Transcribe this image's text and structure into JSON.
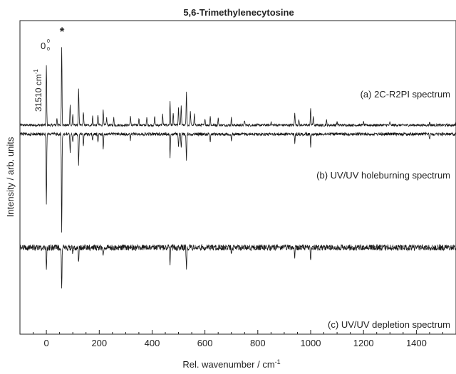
{
  "chart_data": {
    "type": "line",
    "title": "5,6-Trimethylenecytosine",
    "xlabel": "Rel. wavenumber / cm",
    "xlabel_sup": "-1",
    "ylabel": "Intensity / arb. units",
    "xlim": [
      -100,
      1550
    ],
    "x_ticks": [
      0,
      200,
      400,
      600,
      800,
      1000,
      1200,
      1400
    ],
    "x_tick_labels": [
      "0",
      "200",
      "400",
      "600",
      "800",
      "1000",
      "1200",
      "1400"
    ],
    "annotations": {
      "origin_value": "31510 cm",
      "origin_value_sup": "-1",
      "origin_label": "0",
      "origin_sup": "0",
      "origin_sub": "0",
      "star": "*"
    },
    "series": [
      {
        "name": "(a) 2C-R2PI spectrum",
        "baseline": 0.0,
        "direction": "up",
        "noise": 0.02,
        "peaks": [
          [
            0,
            1.0
          ],
          [
            40,
            0.12
          ],
          [
            58,
            1.3
          ],
          [
            90,
            0.35
          ],
          [
            100,
            0.18
          ],
          [
            122,
            0.62
          ],
          [
            140,
            0.22
          ],
          [
            175,
            0.15
          ],
          [
            195,
            0.18
          ],
          [
            215,
            0.28
          ],
          [
            228,
            0.12
          ],
          [
            255,
            0.12
          ],
          [
            318,
            0.15
          ],
          [
            350,
            0.12
          ],
          [
            380,
            0.12
          ],
          [
            410,
            0.15
          ],
          [
            440,
            0.18
          ],
          [
            468,
            0.4
          ],
          [
            480,
            0.2
          ],
          [
            500,
            0.28
          ],
          [
            510,
            0.32
          ],
          [
            530,
            0.55
          ],
          [
            545,
            0.22
          ],
          [
            560,
            0.18
          ],
          [
            600,
            0.12
          ],
          [
            620,
            0.15
          ],
          [
            650,
            0.12
          ],
          [
            700,
            0.12
          ],
          [
            750,
            0.08
          ],
          [
            850,
            0.06
          ],
          [
            940,
            0.22
          ],
          [
            955,
            0.1
          ],
          [
            1000,
            0.28
          ],
          [
            1010,
            0.15
          ],
          [
            1060,
            0.08
          ],
          [
            1100,
            0.06
          ],
          [
            1200,
            0.05
          ],
          [
            1300,
            0.05
          ],
          [
            1450,
            0.05
          ],
          [
            1550,
            0.06
          ]
        ]
      },
      {
        "name": "(b) UV/UV holeburning spectrum",
        "baseline": -0.15,
        "direction": "down",
        "noise": 0.025,
        "peaks": [
          [
            0,
            1.2
          ],
          [
            58,
            1.65
          ],
          [
            90,
            0.3
          ],
          [
            100,
            0.15
          ],
          [
            122,
            0.55
          ],
          [
            140,
            0.2
          ],
          [
            175,
            0.12
          ],
          [
            195,
            0.15
          ],
          [
            215,
            0.25
          ],
          [
            318,
            0.1
          ],
          [
            468,
            0.4
          ],
          [
            500,
            0.2
          ],
          [
            510,
            0.25
          ],
          [
            530,
            0.45
          ],
          [
            620,
            0.12
          ],
          [
            700,
            0.1
          ],
          [
            940,
            0.15
          ],
          [
            1000,
            0.2
          ],
          [
            1450,
            0.1
          ]
        ]
      },
      {
        "name": "(c) UV/UV depletion spectrum",
        "baseline": -2.05,
        "direction": "down",
        "noise": 0.05,
        "peaks": [
          [
            0,
            0.35
          ],
          [
            58,
            0.65
          ],
          [
            100,
            0.12
          ],
          [
            122,
            0.25
          ],
          [
            215,
            0.15
          ],
          [
            468,
            0.28
          ],
          [
            530,
            0.35
          ],
          [
            700,
            0.12
          ],
          [
            940,
            0.15
          ],
          [
            1000,
            0.25
          ]
        ]
      }
    ],
    "reference_line": {
      "y": -2.05,
      "style": "dotted",
      "color": "#999999",
      "x_from": 530
    },
    "colors": {
      "line": "#1a1a1a",
      "axis": "#222222",
      "reference": "#999999"
    }
  }
}
